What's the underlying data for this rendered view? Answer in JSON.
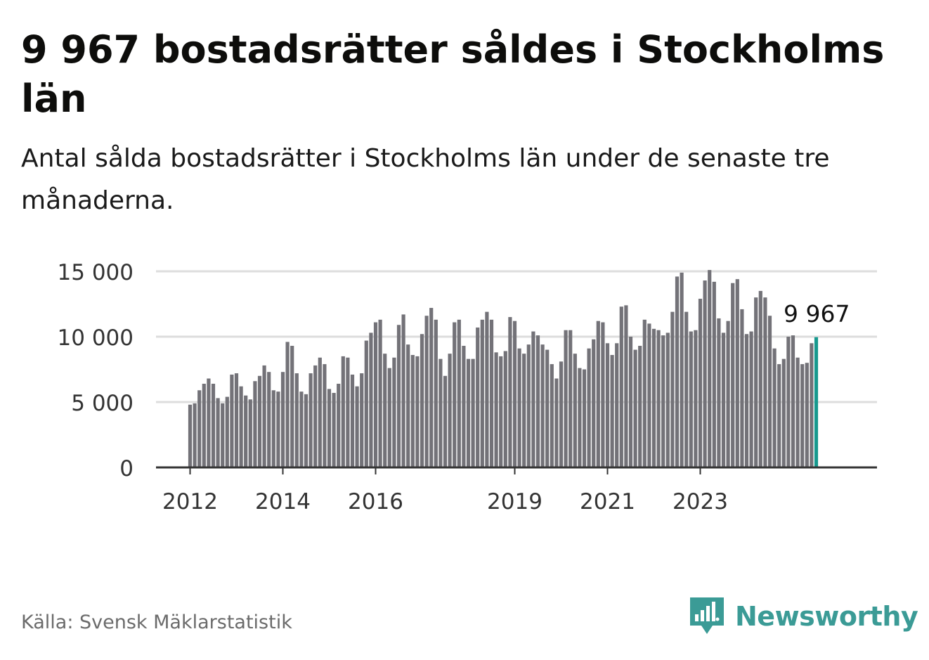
{
  "header": {
    "title": "9 967 bostadsrätter såldes i Stockholms län",
    "subtitle": "Antal sålda bostadsrätter i Stockholms län under de senaste tre månaderna."
  },
  "chart_data": {
    "type": "bar",
    "title": "9 967 bostadsrätter såldes i Stockholms län",
    "xlabel": "",
    "ylabel": "",
    "ylim": [
      0,
      15500
    ],
    "y_ticks": [
      0,
      5000,
      10000,
      15000
    ],
    "y_tick_labels": [
      "0",
      "5 000",
      "10 000",
      "15 000"
    ],
    "x_tick_labels": [
      "2012",
      "2014",
      "2016",
      "2019",
      "2021",
      "2023"
    ],
    "x_tick_bar_index": [
      0,
      20,
      40,
      70,
      90,
      110
    ],
    "highlight_label": "9 967",
    "colors": {
      "bar": "#737278",
      "highlight": "#17998e",
      "grid": "#dddddd",
      "axis": "#333333"
    },
    "values": [
      4800,
      4900,
      5900,
      6400,
      6800,
      6400,
      5300,
      4900,
      5400,
      7100,
      7200,
      6200,
      5500,
      5200,
      6600,
      7000,
      7800,
      7300,
      5900,
      5800,
      7300,
      9600,
      9300,
      7200,
      5800,
      5600,
      7200,
      7800,
      8400,
      7900,
      6000,
      5700,
      6400,
      8500,
      8400,
      7100,
      6200,
      7200,
      9700,
      10300,
      11100,
      11300,
      8700,
      7600,
      8400,
      10900,
      11700,
      9400,
      8600,
      8500,
      10200,
      11600,
      12200,
      11300,
      8300,
      7000,
      8700,
      11100,
      11300,
      9300,
      8300,
      8300,
      10700,
      11300,
      11900,
      11300,
      8800,
      8500,
      8900,
      11500,
      11200,
      9100,
      8700,
      9400,
      10400,
      10100,
      9400,
      9000,
      7900,
      6800,
      8100,
      10500,
      10500,
      8700,
      7600,
      7500,
      9100,
      9800,
      11200,
      11100,
      9500,
      8600,
      9500,
      12300,
      12400,
      10000,
      9000,
      9300,
      11300,
      11000,
      10600,
      10500,
      10100,
      10300,
      11900,
      14600,
      14900,
      11900,
      10400,
      10500,
      12900,
      14300,
      15100,
      14200,
      11400,
      10300,
      11200,
      14100,
      14400,
      12100,
      10200,
      10400,
      13000,
      13500,
      13000,
      11600,
      9100,
      7900,
      8300,
      10000,
      10100,
      8400,
      7900,
      8000,
      9500,
      9967
    ]
  },
  "footer": {
    "source": "Källa: Svensk Mäklarstatistik",
    "brand": "Newsworthy"
  }
}
